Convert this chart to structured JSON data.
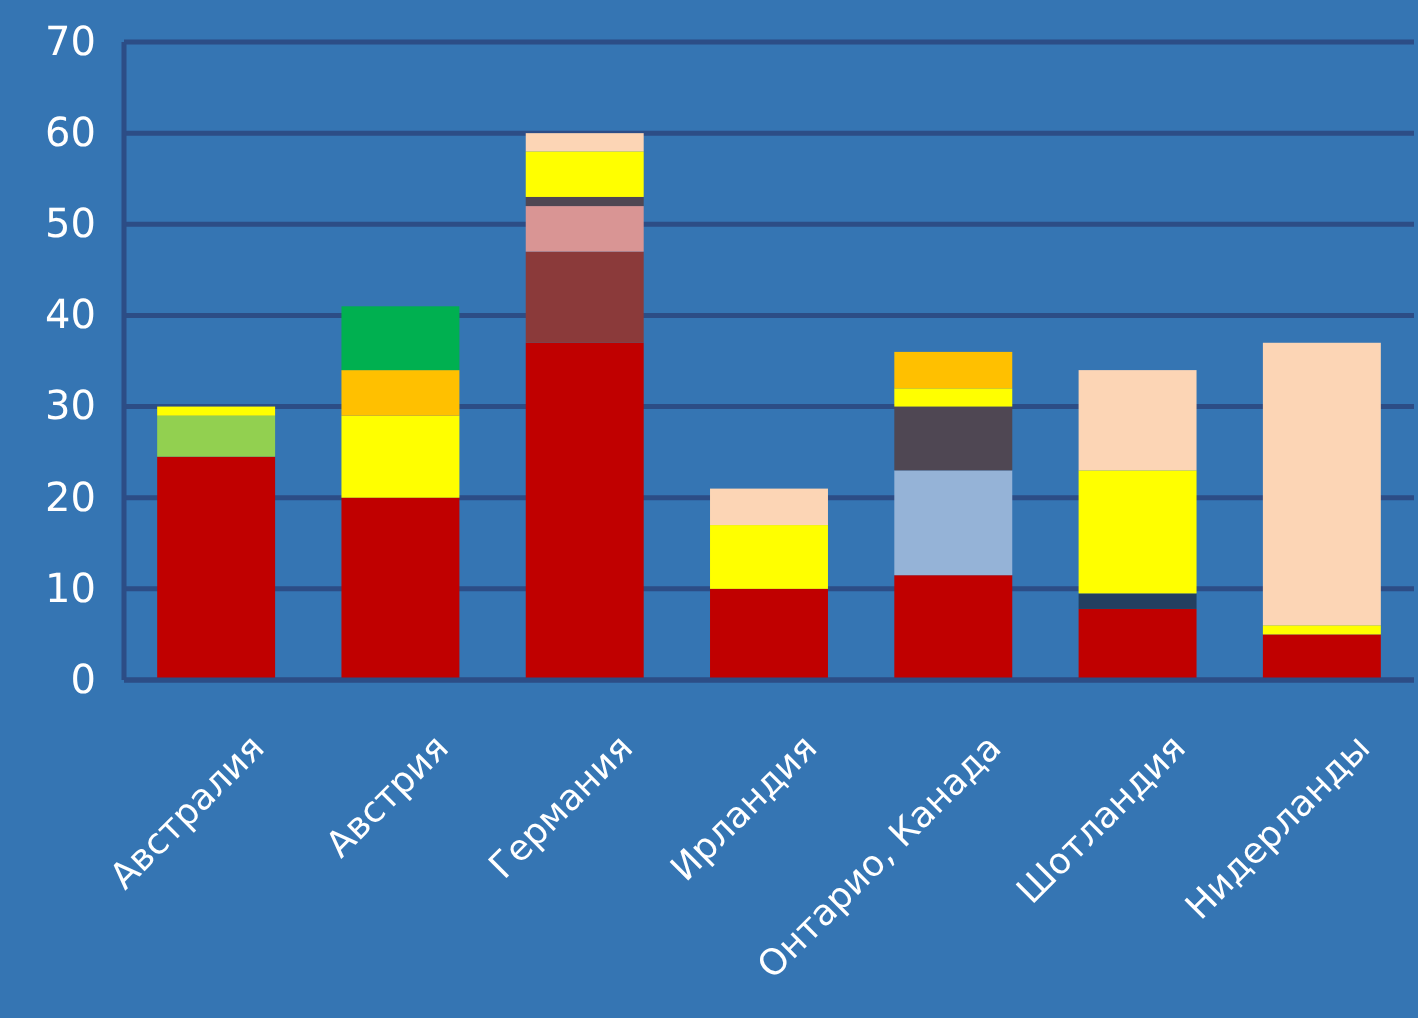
{
  "chart_data": {
    "type": "bar",
    "stacked": true,
    "grid": "y",
    "categories": [
      "Австралия",
      "Австрия",
      "Германия",
      "Ирландия",
      "Онтарио, Канада",
      "Шотландия",
      "Нидерланды"
    ],
    "ylim": [
      0,
      70
    ],
    "yticks": [
      0,
      10,
      20,
      30,
      40,
      50,
      60,
      70
    ],
    "series": [
      {
        "color": "#c00000",
        "values": [
          24.5,
          20,
          37,
          10,
          11.5,
          7.8,
          5
        ]
      },
      {
        "color": "#8b3a3a",
        "values": [
          null,
          null,
          10,
          null,
          null,
          null,
          null
        ]
      },
      {
        "color": "#92d050",
        "values": [
          4.5,
          null,
          null,
          null,
          null,
          null,
          null
        ]
      },
      {
        "color": "#d99594",
        "values": [
          null,
          null,
          5,
          null,
          null,
          null,
          null
        ]
      },
      {
        "color": "#95b3d7",
        "values": [
          null,
          null,
          null,
          null,
          11.5,
          null,
          null
        ]
      },
      {
        "color": "#243f60",
        "values": [
          null,
          null,
          null,
          null,
          null,
          1.7,
          null
        ]
      },
      {
        "color": "#4f4753",
        "values": [
          null,
          null,
          1,
          null,
          7,
          null,
          null
        ]
      },
      {
        "color": "#ffff00",
        "values": [
          1,
          9,
          5,
          7,
          2,
          13.5,
          1
        ]
      },
      {
        "color": "#ffc000",
        "values": [
          null,
          5,
          null,
          null,
          4,
          null,
          null
        ]
      },
      {
        "color": "#00b050",
        "values": [
          null,
          7,
          null,
          null,
          null,
          null,
          null
        ]
      },
      {
        "color": "#fcd5b5",
        "values": [
          null,
          null,
          2,
          4,
          null,
          11,
          31
        ]
      }
    ]
  }
}
